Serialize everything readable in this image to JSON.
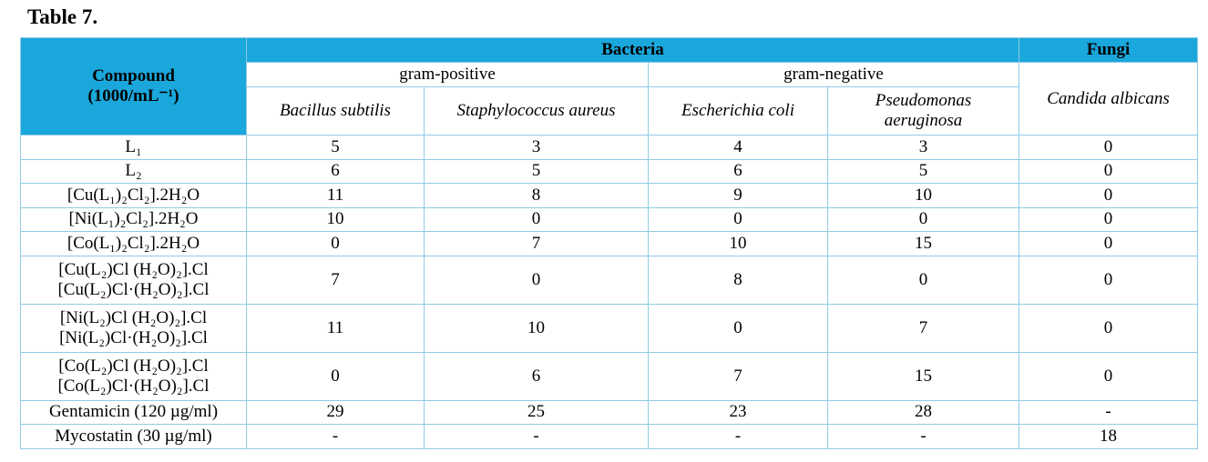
{
  "title": "Table 7.",
  "table": {
    "header": {
      "compound": [
        "Compound",
        "(1000/mL⁻¹)"
      ],
      "bacteria": "Bacteria",
      "fungi": "Fungi",
      "groups": [
        "gram-positive",
        "gram-negative"
      ],
      "organisms": [
        "Bacillus subtilis",
        "Staphylococcus aureus",
        "Escherichia coli",
        "Pseudomonas aeruginosa",
        "Candida albicans"
      ]
    },
    "rows": [
      {
        "compound": [
          "L₁"
        ],
        "values": [
          5,
          3,
          4,
          3,
          0
        ]
      },
      {
        "compound": [
          "L₂"
        ],
        "values": [
          6,
          5,
          6,
          5,
          0
        ]
      },
      {
        "compound": [
          "[Cu(L₁)₂Cl₂].2H₂O"
        ],
        "values": [
          11,
          8,
          9,
          10,
          0
        ]
      },
      {
        "compound": [
          "[Ni(L₁)₂Cl₂].2H₂O"
        ],
        "values": [
          10,
          0,
          0,
          0,
          0
        ]
      },
      {
        "compound": [
          "[Co(L₁)₂Cl₂].2H₂O"
        ],
        "values": [
          0,
          7,
          10,
          15,
          0
        ]
      },
      {
        "compound": [
          "[Cu(L₂)Cl (H₂O)₂].Cl",
          "[Cu(L₂)Cl·(H₂O)₂].Cl"
        ],
        "values": [
          7,
          0,
          8,
          0,
          0
        ]
      },
      {
        "compound": [
          "[Ni(L₂)Cl (H₂O)₂].Cl",
          "[Ni(L₂)Cl·(H₂O)₂].Cl"
        ],
        "values": [
          11,
          10,
          0,
          7,
          0
        ]
      },
      {
        "compound": [
          "[Co(L₂)Cl (H₂O)₂].Cl",
          "[Co(L₂)Cl·(H₂O)₂].Cl"
        ],
        "values": [
          0,
          6,
          7,
          15,
          0
        ]
      },
      {
        "compound": [
          "Gentamicin (120 µg/ml)"
        ],
        "values": [
          29,
          25,
          23,
          28,
          "-"
        ]
      },
      {
        "compound": [
          "Mycostatin (30 µg/ml)"
        ],
        "values": [
          "-",
          "-",
          "-",
          "-",
          18
        ]
      }
    ]
  }
}
